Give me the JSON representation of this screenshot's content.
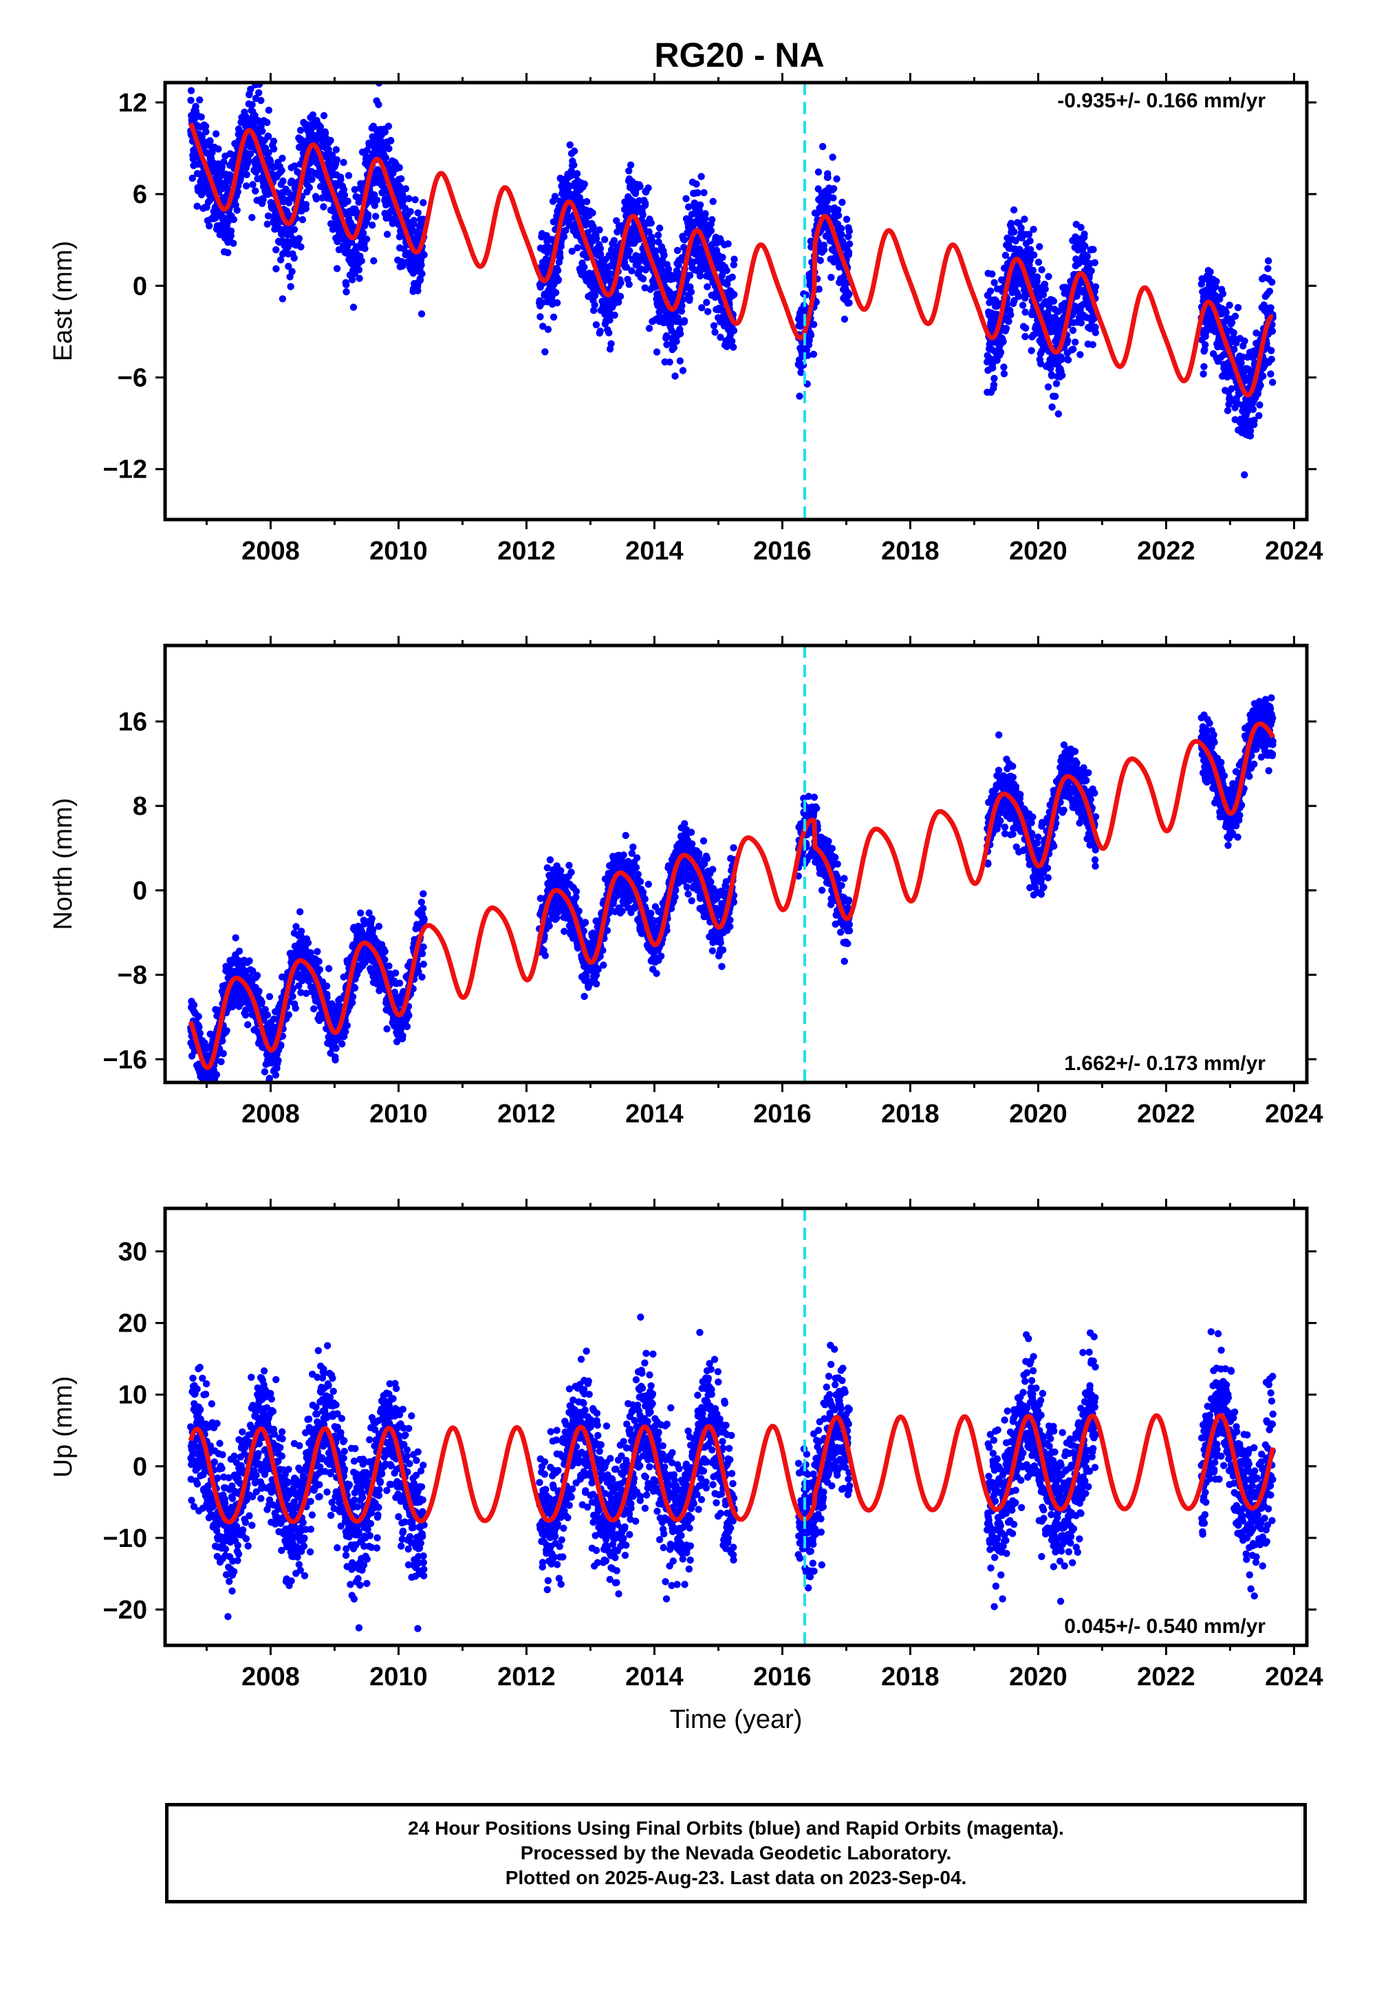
{
  "page": {
    "title": "RG20 - NA",
    "footer": [
      "24 Hour Positions Using Final Orbits (blue) and Rapid Orbits (magenta).",
      "Processed by the Nevada Geodetic Laboratory.",
      "Plotted on 2025-Aug-23. Last data on 2023-Sep-04."
    ]
  },
  "colors": {
    "final_orbits": "#0000ff",
    "model_fit": "#ee1111",
    "event_marker": "#22ddee",
    "frame": "#000000"
  },
  "chart_data": [
    {
      "type": "scatter",
      "component": "east",
      "ylabel": "East (mm)",
      "xlabel": "",
      "rate_label": "-0.935+/- 0.166 mm/yr",
      "rate_position": "top-right",
      "xlim": [
        2006.35,
        2024.2
      ],
      "ylim": [
        -15.3,
        13.3
      ],
      "x_ticks": [
        2008,
        2010,
        2012,
        2014,
        2016,
        2018,
        2020,
        2022,
        2024
      ],
      "y_ticks": [
        12,
        6,
        0,
        -6,
        -12
      ],
      "y_tick_labels": [
        "12",
        "6",
        "0",
        "−6",
        "−12"
      ],
      "event_line_x": 2016.35,
      "data_gaps": [
        [
          2010.4,
          2012.2
        ],
        [
          2015.25,
          2016.25
        ],
        [
          2017.05,
          2019.2
        ],
        [
          2020.9,
          2022.55
        ]
      ],
      "data_range": [
        2006.75,
        2023.67
      ],
      "model": {
        "intercept_2007": 8.0,
        "rate": -0.935,
        "annual_amp": 2.6,
        "annual_phase_peak": 0.72,
        "semiannual_amp": 0.5,
        "semiannual_phase_peak": 0.1,
        "steps": [
          {
            "x": 2016.5,
            "dy": 2.8
          }
        ]
      },
      "scatter_noise": 1.6,
      "series": [
        {
          "name": "Final Orbits (blue)",
          "kind": "points"
        },
        {
          "name": "Model fit",
          "kind": "line"
        }
      ]
    },
    {
      "type": "scatter",
      "component": "north",
      "ylabel": "North (mm)",
      "xlabel": "",
      "rate_label": "1.662+/- 0.173 mm/yr",
      "rate_position": "bottom-right",
      "xlim": [
        2006.35,
        2024.2
      ],
      "ylim": [
        -18.2,
        23.2
      ],
      "x_ticks": [
        2008,
        2010,
        2012,
        2014,
        2016,
        2018,
        2020,
        2022,
        2024
      ],
      "y_ticks": [
        16,
        8,
        0,
        -8,
        -16
      ],
      "y_tick_labels": [
        "16",
        "8",
        "0",
        "−8",
        "−16"
      ],
      "event_line_x": 2016.35,
      "data_gaps": [
        [
          2010.4,
          2012.2
        ],
        [
          2015.25,
          2016.25
        ],
        [
          2017.05,
          2019.2
        ],
        [
          2020.9,
          2022.55
        ]
      ],
      "data_range": [
        2006.75,
        2023.67
      ],
      "model": {
        "intercept_2007": -12.5,
        "rate": 1.662,
        "annual_amp": 3.8,
        "annual_phase_peak": 0.5,
        "semiannual_amp": 0.6,
        "semiannual_phase_peak": 0.3,
        "steps": [
          {
            "x": 2016.5,
            "dy": -2.5
          }
        ]
      },
      "scatter_noise": 1.4,
      "series": [
        {
          "name": "Final Orbits (blue)",
          "kind": "points"
        },
        {
          "name": "Model fit",
          "kind": "line"
        }
      ]
    },
    {
      "type": "scatter",
      "component": "up",
      "ylabel": "Up (mm)",
      "xlabel": "Time (year)",
      "rate_label": "0.045+/- 0.540 mm/yr",
      "rate_position": "bottom-right",
      "xlim": [
        2006.35,
        2024.2
      ],
      "ylim": [
        -25,
        36
      ],
      "x_ticks": [
        2008,
        2010,
        2012,
        2014,
        2016,
        2018,
        2020,
        2022,
        2024
      ],
      "y_ticks": [
        30,
        20,
        10,
        0,
        -10,
        -20
      ],
      "y_tick_labels": [
        "30",
        "20",
        "10",
        "0",
        "−10",
        "−20"
      ],
      "event_line_x": 2016.35,
      "data_gaps": [
        [
          2010.4,
          2012.2
        ],
        [
          2015.25,
          2016.25
        ],
        [
          2017.05,
          2019.2
        ],
        [
          2020.9,
          2022.55
        ]
      ],
      "data_range": [
        2006.75,
        2023.67
      ],
      "model": {
        "intercept_2007": -1.8,
        "rate": 0.045,
        "annual_amp": 6.5,
        "annual_phase_peak": 0.85,
        "semiannual_amp": 0.5,
        "semiannual_phase_peak": 0.35,
        "steps": [
          {
            "x": 2016.5,
            "dy": 1.2
          }
        ]
      },
      "scatter_noise": 4.5,
      "series": [
        {
          "name": "Final Orbits (blue)",
          "kind": "points"
        },
        {
          "name": "Model fit",
          "kind": "line"
        }
      ]
    }
  ]
}
